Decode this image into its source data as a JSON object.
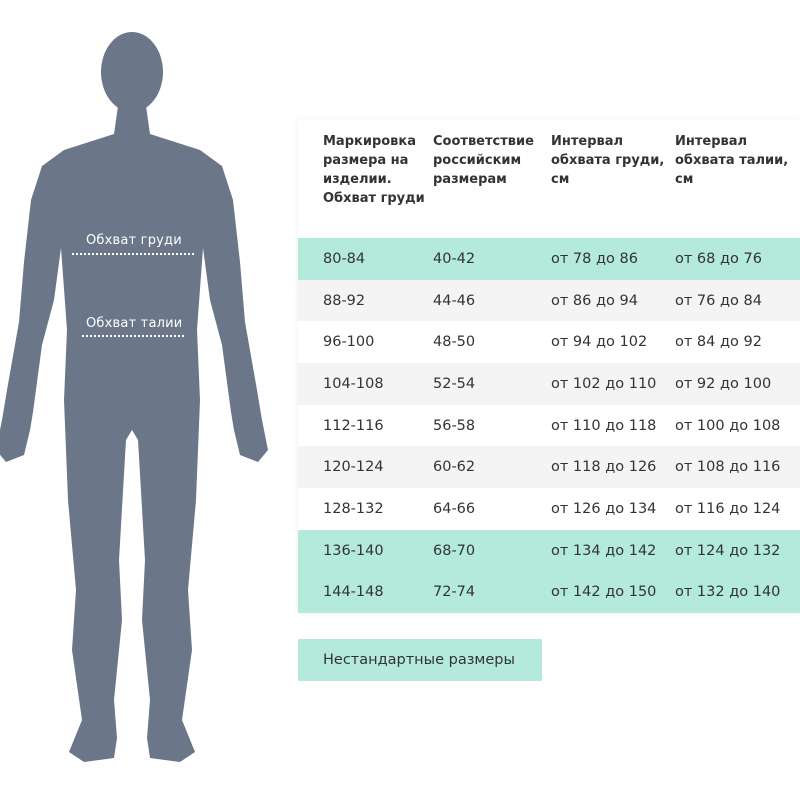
{
  "figure": {
    "chest_label": "Обхват груди",
    "waist_label": "Обхват талии",
    "body_color": "#6b7788"
  },
  "table": {
    "headers": [
      "Маркировка размера на изделии. Обхват груди",
      "Соответствие российским размерам",
      "Интервал обхвата груди, см",
      "Интервал обхвата талии, см"
    ],
    "rows": [
      {
        "style": "green",
        "cells": [
          "80-84",
          "40-42",
          "от 78 до 86",
          "от 68 до 76"
        ]
      },
      {
        "style": "gray",
        "cells": [
          "88-92",
          "44-46",
          "от 86 до 94",
          "от 76 до 84"
        ]
      },
      {
        "style": "white",
        "cells": [
          "96-100",
          "48-50",
          "от 94 до 102",
          "от 84 до 92"
        ]
      },
      {
        "style": "gray",
        "cells": [
          "104-108",
          "52-54",
          "от 102 до 110",
          "от 92 до 100"
        ]
      },
      {
        "style": "white",
        "cells": [
          "112-116",
          "56-58",
          "от 110 до 118",
          "от 100 до 108"
        ]
      },
      {
        "style": "gray",
        "cells": [
          "120-124",
          "60-62",
          "от 118 до 126",
          "от 108 до 116"
        ]
      },
      {
        "style": "white",
        "cells": [
          "128-132",
          "64-66",
          "от 126 до 134",
          "от 116 до 124"
        ]
      },
      {
        "style": "green",
        "cells": [
          "136-140",
          "68-70",
          "от 134 до 142",
          "от 124 до 132"
        ]
      },
      {
        "style": "green",
        "cells": [
          "144-148",
          "72-74",
          "от 142 до 150",
          "от 132 до 140"
        ]
      }
    ],
    "highlight_color": "#b3eadb"
  },
  "nonstandard_label": "Нестандартные размеры"
}
